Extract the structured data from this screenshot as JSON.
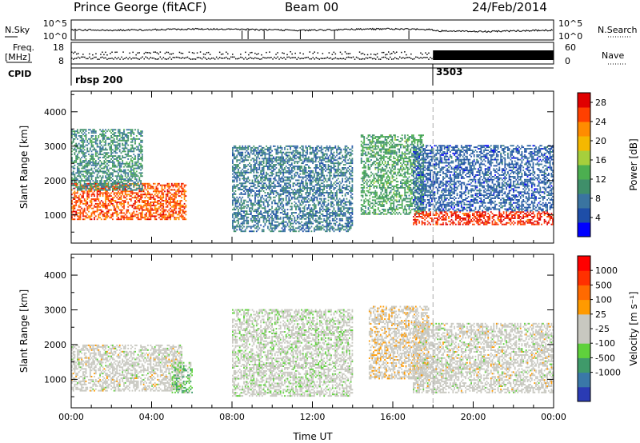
{
  "header": {
    "station": "Prince George (fitACF)",
    "beam": "Beam 00",
    "date": "24/Feb/2014"
  },
  "status": {
    "nsky_label": "N.Sky",
    "nsearch_label": "N.Search",
    "freq_label": "Freq.",
    "freq_unit": "[MHz]",
    "nave_label": "Nave",
    "cpid_label": "CPID",
    "nsky_ticks": [
      "10^5",
      "10^0"
    ],
    "nsearch_ticks": [
      "10^5",
      "10^0"
    ],
    "freq_ticks": [
      "18",
      "8"
    ],
    "nave_ticks": [
      "60",
      "0"
    ],
    "cpid_entries": [
      {
        "label": "rbsp 200",
        "start_hour": 0.0
      },
      {
        "label": "3503",
        "start_hour": 18.0
      }
    ]
  },
  "chart_data": [
    {
      "type": "heatmap",
      "parameter": "Power",
      "ylabel": "Slant Range [km]",
      "xlabel": "",
      "yticks": [
        1000,
        2000,
        3000,
        4000
      ],
      "ylim": [
        180,
        4600
      ],
      "xlim": [
        0,
        24
      ],
      "colorbar": {
        "title": "Power [dB]",
        "ticks": [
          "4",
          "8",
          "12",
          "16",
          "20",
          "24",
          "28"
        ],
        "range": [
          0,
          30
        ]
      },
      "colors": [
        "#0000ff",
        "#1e4ea8",
        "#3a74a0",
        "#3f8f6a",
        "#4caf50",
        "#a6cf3c",
        "#f5b800",
        "#ff8c00",
        "#ff4000",
        "#e00000"
      ],
      "regions": [
        {
          "t": [
            0.0,
            5.7
          ],
          "r": [
            850,
            1900
          ],
          "v": 25
        },
        {
          "t": [
            0.0,
            3.5
          ],
          "r": [
            1700,
            3500
          ],
          "v": 10
        },
        {
          "t": [
            14.4,
            17.5
          ],
          "r": [
            1000,
            3300
          ],
          "v": 12
        },
        {
          "t": [
            17.0,
            24.0
          ],
          "r": [
            700,
            1100
          ],
          "v": 27
        },
        {
          "t": [
            17.0,
            24.0
          ],
          "r": [
            1100,
            3000
          ],
          "v": 6
        },
        {
          "t": [
            8.0,
            14.0
          ],
          "r": [
            500,
            3000
          ],
          "v": 8
        }
      ]
    },
    {
      "type": "heatmap",
      "parameter": "Velocity",
      "ylabel": "Slant Range [km]",
      "xlabel": "Time UT",
      "yticks": [
        1000,
        2000,
        3000,
        4000
      ],
      "ylim": [
        180,
        4600
      ],
      "xlim": [
        0,
        24
      ],
      "xticks": [
        "00:00",
        "04:00",
        "08:00",
        "12:00",
        "16:00",
        "20:00",
        "00:00"
      ],
      "colorbar": {
        "title": "Velocity [m s⁻¹]",
        "ticks": [
          "1000",
          "500",
          "100",
          "25",
          "-25",
          "-100",
          "-500",
          "-1000"
        ],
        "range": [
          -1000,
          1000
        ]
      },
      "colors": [
        "#2a3bb4",
        "#3a78a8",
        "#3f9a6a",
        "#5fd13c",
        "#c8c8c0",
        "#c8c8c0",
        "#ff9a00",
        "#ff6a00",
        "#ff3000",
        "#ff0000"
      ],
      "regions": [
        {
          "t": [
            0.0,
            5.5
          ],
          "r": [
            650,
            2000
          ],
          "v": 0
        },
        {
          "t": [
            5.0,
            6.0
          ],
          "r": [
            600,
            1500
          ],
          "v": -300
        },
        {
          "t": [
            14.8,
            17.8
          ],
          "r": [
            1000,
            3100
          ],
          "v": 80
        },
        {
          "t": [
            17.0,
            24.0
          ],
          "r": [
            600,
            2600
          ],
          "v": 0
        },
        {
          "t": [
            8.0,
            14.0
          ],
          "r": [
            500,
            3000
          ],
          "v": -50
        }
      ]
    }
  ]
}
